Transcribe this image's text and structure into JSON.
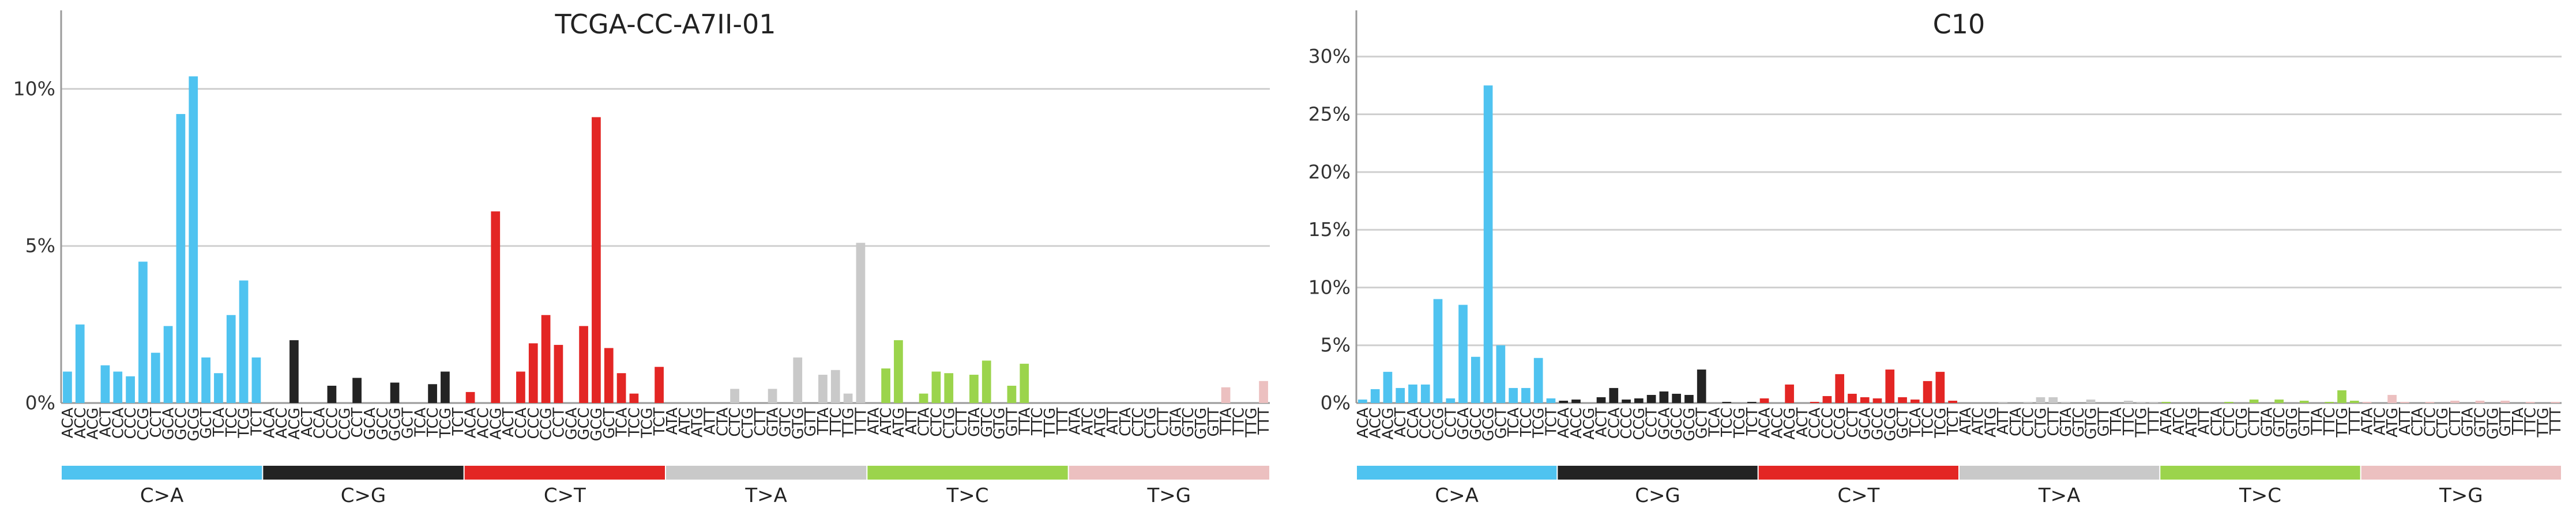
{
  "figure": {
    "panels": [
      "TCGA-CC-A7II-01",
      "C10"
    ]
  },
  "chart_data": [
    {
      "type": "bar",
      "title": "TCGA-CC-A7II-01",
      "ylabel": "",
      "xlabel": "",
      "ylim": [
        0,
        12.5
      ],
      "yticks": [
        0,
        5,
        10
      ],
      "ytick_labels": [
        "0%",
        "5%",
        "10%"
      ],
      "grid": true,
      "mutation_types": [
        "C>A",
        "C>G",
        "C>T",
        "T>A",
        "T>C",
        "T>G"
      ],
      "colors": [
        "#4fc3f0",
        "#232323",
        "#e32624",
        "#c9c9c9",
        "#9bd44c",
        "#ecc0c0"
      ],
      "categories": [
        "ACA",
        "ACC",
        "ACG",
        "ACT",
        "CCA",
        "CCC",
        "CCG",
        "CCT",
        "GCA",
        "GCC",
        "GCG",
        "GCT",
        "TCA",
        "TCC",
        "TCG",
        "TCT",
        "ACA",
        "ACC",
        "ACG",
        "ACT",
        "CCA",
        "CCC",
        "CCG",
        "CCT",
        "GCA",
        "GCC",
        "GCG",
        "GCT",
        "TCA",
        "TCC",
        "TCG",
        "TCT",
        "ACA",
        "ACC",
        "ACG",
        "ACT",
        "CCA",
        "CCC",
        "CCG",
        "CCT",
        "GCA",
        "GCC",
        "GCG",
        "GCT",
        "TCA",
        "TCC",
        "TCG",
        "TCT",
        "ATA",
        "ATC",
        "ATG",
        "ATT",
        "CTA",
        "CTC",
        "CTG",
        "CTT",
        "GTA",
        "GTC",
        "GTG",
        "GTT",
        "TTA",
        "TTC",
        "TTG",
        "TTT",
        "ATA",
        "ATC",
        "ATG",
        "ATT",
        "CTA",
        "CTC",
        "CTG",
        "CTT",
        "GTA",
        "GTC",
        "GTG",
        "GTT",
        "TTA",
        "TTC",
        "TTG",
        "TTT",
        "ATA",
        "ATC",
        "ATG",
        "ATT",
        "CTA",
        "CTC",
        "CTG",
        "CTT",
        "GTA",
        "GTC",
        "GTG",
        "GTT",
        "TTA",
        "TTC",
        "TTG",
        "TTT"
      ],
      "values": [
        1.0,
        2.5,
        0,
        1.2,
        1.0,
        0.85,
        4.5,
        1.6,
        2.45,
        9.2,
        10.4,
        1.45,
        0.95,
        2.8,
        3.9,
        1.45,
        0,
        0,
        2.0,
        0,
        0,
        0.55,
        0,
        0.8,
        0,
        0,
        0.65,
        0,
        0,
        0.6,
        1.0,
        0,
        0.35,
        0,
        6.1,
        0,
        1.0,
        1.9,
        2.8,
        1.85,
        0,
        2.45,
        9.1,
        1.75,
        0.95,
        0.3,
        0,
        1.15,
        0,
        0,
        0,
        0,
        0,
        0.45,
        0,
        0,
        0.45,
        0,
        1.45,
        0,
        0.9,
        1.05,
        0.3,
        5.1,
        0,
        1.1,
        2.0,
        0,
        0.3,
        1.0,
        0.95,
        0,
        0.9,
        1.35,
        0,
        0.55,
        1.25,
        0,
        0,
        0,
        0,
        0,
        0,
        0,
        0,
        0,
        0,
        0,
        0,
        0,
        0,
        0,
        0.5,
        0,
        0,
        0.7
      ]
    },
    {
      "type": "bar",
      "title": "C10",
      "ylabel": "",
      "xlabel": "",
      "ylim": [
        0,
        34
      ],
      "yticks": [
        0,
        5,
        10,
        15,
        20,
        25,
        30
      ],
      "ytick_labels": [
        "0%",
        "5%",
        "10%",
        "15%",
        "20%",
        "25%",
        "30%"
      ],
      "grid": true,
      "mutation_types": [
        "C>A",
        "C>G",
        "C>T",
        "T>A",
        "T>C",
        "T>G"
      ],
      "colors": [
        "#4fc3f0",
        "#232323",
        "#e32624",
        "#c9c9c9",
        "#9bd44c",
        "#ecc0c0"
      ],
      "categories": [
        "ACA",
        "ACC",
        "ACG",
        "ACT",
        "CCA",
        "CCC",
        "CCG",
        "CCT",
        "GCA",
        "GCC",
        "GCG",
        "GCT",
        "TCA",
        "TCC",
        "TCG",
        "TCT",
        "ACA",
        "ACC",
        "ACG",
        "ACT",
        "CCA",
        "CCC",
        "CCG",
        "CCT",
        "GCA",
        "GCC",
        "GCG",
        "GCT",
        "TCA",
        "TCC",
        "TCG",
        "TCT",
        "ACA",
        "ACC",
        "ACG",
        "ACT",
        "CCA",
        "CCC",
        "CCG",
        "CCT",
        "GCA",
        "GCC",
        "GCG",
        "GCT",
        "TCA",
        "TCC",
        "TCG",
        "TCT",
        "ATA",
        "ATC",
        "ATG",
        "ATT",
        "CTA",
        "CTC",
        "CTG",
        "CTT",
        "GTA",
        "GTC",
        "GTG",
        "GTT",
        "TTA",
        "TTC",
        "TTG",
        "TTT",
        "ATA",
        "ATC",
        "ATG",
        "ATT",
        "CTA",
        "CTC",
        "CTG",
        "CTT",
        "GTA",
        "GTC",
        "GTG",
        "GTT",
        "TTA",
        "TTC",
        "TTG",
        "TTT",
        "ATA",
        "ATC",
        "ATG",
        "ATT",
        "CTA",
        "CTC",
        "CTG",
        "CTT",
        "GTA",
        "GTC",
        "GTG",
        "GTT",
        "TTA",
        "TTC",
        "TTG",
        "TTT"
      ],
      "values": [
        0.3,
        1.2,
        2.7,
        1.3,
        1.6,
        1.6,
        9.0,
        0.4,
        8.5,
        4.0,
        27.5,
        5.0,
        1.3,
        1.3,
        3.9,
        0.4,
        0.2,
        0.3,
        0.0,
        0.5,
        1.3,
        0.3,
        0.4,
        0.7,
        1.0,
        0.8,
        0.7,
        2.9,
        0.0,
        0.1,
        0.0,
        0.1,
        0.4,
        0.0,
        1.6,
        0.0,
        0.1,
        0.6,
        2.5,
        0.8,
        0.5,
        0.4,
        2.9,
        0.5,
        0.3,
        1.9,
        2.7,
        0.2,
        0.0,
        0.0,
        0.0,
        0.1,
        0.0,
        0.1,
        0.5,
        0.5,
        0.1,
        0.0,
        0.3,
        0.0,
        0.0,
        0.2,
        0.1,
        0.1,
        0.1,
        0.0,
        0.0,
        0.0,
        0.0,
        0.1,
        0.0,
        0.3,
        0.0,
        0.3,
        0.0,
        0.2,
        0.0,
        0.1,
        1.1,
        0.2,
        0.1,
        0.0,
        0.7,
        0.1,
        0.0,
        0.1,
        0.0,
        0.2,
        0.0,
        0.2,
        0.0,
        0.2,
        0.0,
        0.1,
        0.0,
        0.1
      ]
    }
  ]
}
